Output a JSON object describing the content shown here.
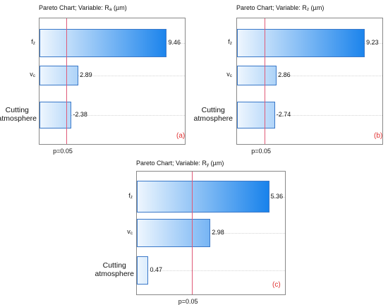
{
  "chart_data": [
    {
      "type": "bar",
      "orientation": "horizontal",
      "title": "Pareto Chart; Variable: Ra (µm)",
      "title_prefix": "Pareto Chart; Variable: R",
      "title_sub": "a",
      "title_suffix": " (µm)",
      "categories": [
        {
          "main": "f",
          "sub": "z"
        },
        {
          "main": "v",
          "sub": "c"
        },
        {
          "main": "Cutting atmosphere",
          "sub": ""
        }
      ],
      "values": [
        9.46,
        2.89,
        2.38
      ],
      "value_labels": [
        "9.46",
        "2.89",
        "-2.38"
      ],
      "significance_value": 2.0,
      "significance_label": "p=0.05",
      "panel_label": "(a)",
      "xlim": [
        0,
        10.8
      ]
    },
    {
      "type": "bar",
      "orientation": "horizontal",
      "title": "Pareto Chart; Variable: Rz (µm)",
      "title_prefix": "Pareto Chart; Variable: R",
      "title_sub": "z",
      "title_suffix": " (µm)",
      "categories": [
        {
          "main": "f",
          "sub": "z"
        },
        {
          "main": "v",
          "sub": "c"
        },
        {
          "main": "Cutting atmosphere",
          "sub": ""
        }
      ],
      "values": [
        9.23,
        2.86,
        2.74
      ],
      "value_labels": [
        "9.23",
        "2.86",
        "-2.74"
      ],
      "significance_value": 2.0,
      "significance_label": "p=0.05",
      "panel_label": "(b)",
      "xlim": [
        0,
        10.5
      ]
    },
    {
      "type": "bar",
      "orientation": "horizontal",
      "title": "Pareto Chart; Variable: Ry (µm)",
      "title_prefix": "Pareto Chart; Variable: R",
      "title_sub": "y",
      "title_suffix": " (µm)",
      "categories": [
        {
          "main": "f",
          "sub": "z"
        },
        {
          "main": "v",
          "sub": "c"
        },
        {
          "main": "Cutting atmosphere",
          "sub": ""
        }
      ],
      "values": [
        5.36,
        2.98,
        0.47
      ],
      "value_labels": [
        "5.36",
        "2.98",
        "0.47"
      ],
      "significance_value": 2.22,
      "significance_label": "p=0.05",
      "panel_label": "(c)",
      "xlim": [
        0,
        6.0
      ]
    }
  ],
  "colors": {
    "bar_light": "#eef6fe",
    "bar_dark": "#0a7aea",
    "bar_border": "#3a78c8",
    "significance_line": "#e05a78",
    "panel_label": "#e03030"
  }
}
